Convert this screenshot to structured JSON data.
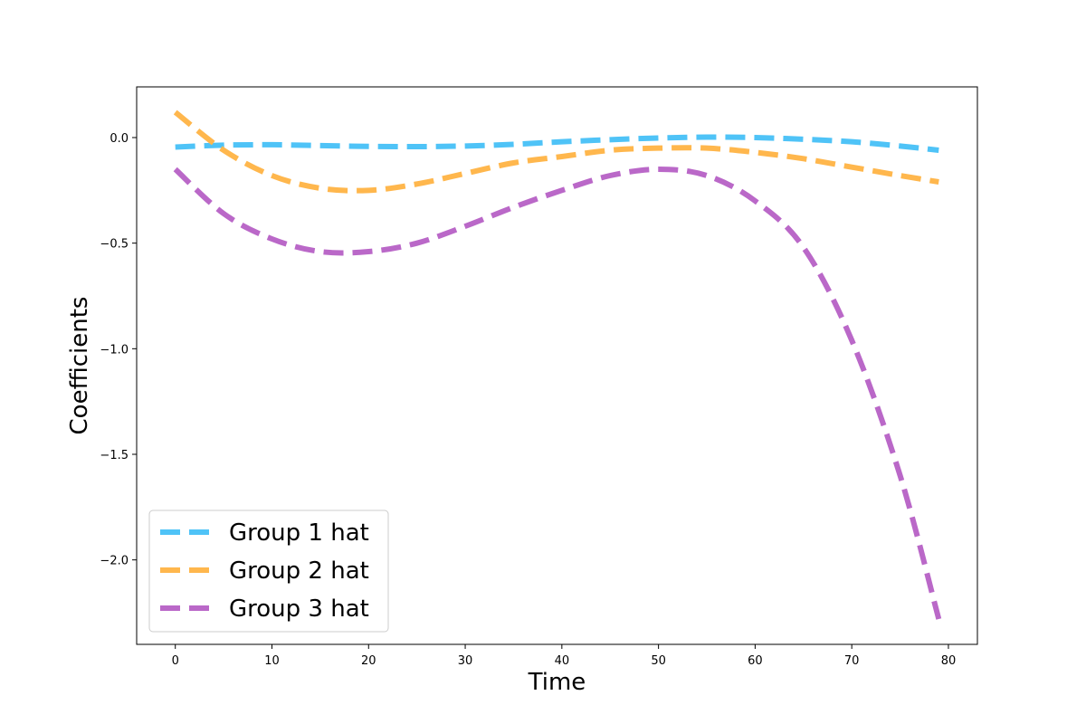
{
  "chart_data": {
    "type": "line",
    "title": "",
    "xlabel": "Time",
    "ylabel": "Coefficients",
    "xlim": [
      -4,
      83
    ],
    "ylim": [
      -2.4,
      0.24
    ],
    "xticks": [
      0,
      10,
      20,
      30,
      40,
      50,
      60,
      70,
      80
    ],
    "yticks": [
      0.0,
      -0.5,
      -1.0,
      -1.5,
      -2.0
    ],
    "ytick_labels": [
      "0.0",
      "−0.5",
      "−1.0",
      "−1.5",
      "−2.0"
    ],
    "grid": false,
    "legend": "lower-left",
    "x": [
      0,
      5,
      10,
      15,
      20,
      25,
      30,
      35,
      40,
      45,
      50,
      55,
      60,
      65,
      70,
      75,
      79
    ],
    "series": [
      {
        "name": "Group 1 hat",
        "color": "#4fc3f7",
        "values": [
          -0.045,
          -0.036,
          -0.034,
          -0.038,
          -0.042,
          -0.043,
          -0.04,
          -0.032,
          -0.02,
          -0.01,
          -0.002,
          0.002,
          0.0,
          -0.008,
          -0.02,
          -0.04,
          -0.06
        ]
      },
      {
        "name": "Group 2 hat",
        "color": "#ffb74d",
        "values": [
          0.12,
          -0.06,
          -0.18,
          -0.24,
          -0.25,
          -0.22,
          -0.17,
          -0.12,
          -0.09,
          -0.06,
          -0.05,
          -0.05,
          -0.07,
          -0.1,
          -0.14,
          -0.18,
          -0.21
        ]
      },
      {
        "name": "Group 3 hat",
        "color": "#ba68c8",
        "values": [
          -0.15,
          -0.36,
          -0.48,
          -0.54,
          -0.54,
          -0.5,
          -0.42,
          -0.33,
          -0.25,
          -0.18,
          -0.15,
          -0.18,
          -0.3,
          -0.52,
          -0.96,
          -1.6,
          -2.28
        ]
      }
    ]
  }
}
